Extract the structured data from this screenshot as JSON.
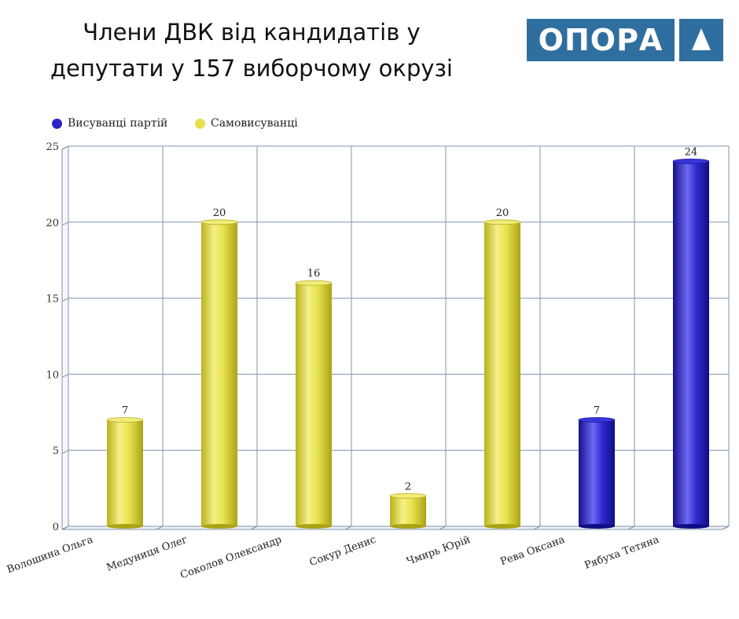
{
  "header": {
    "title_line1": "Члени ДВК  від кандидатів у",
    "title_line2": "депутати у 157 виборчому окрузі",
    "logo_text": "ОПОРА"
  },
  "colors": {
    "party": "#2a24c8",
    "self": "#e6e14a",
    "logo_blue": "#2f6f9f",
    "grid": "#7f95b0"
  },
  "chart_data": {
    "type": "bar",
    "title": "",
    "xlabel": "",
    "ylabel": "",
    "ylim": [
      0,
      25
    ],
    "yticks": [
      0,
      5,
      10,
      15,
      20,
      25
    ],
    "grid": true,
    "legend_position": "top-left",
    "series": [
      {
        "name": "Висуванці партій",
        "color": "#2a24c8"
      },
      {
        "name": "Самовисуванці",
        "color": "#e6e14a"
      }
    ],
    "categories": [
      "Волошина Ольга",
      "Медуниця Олег",
      "Соколов Олександр",
      "Сокур Денис",
      "Чмирь Юрій",
      "Рева Оксана",
      "Рябуха Тетяна"
    ],
    "values": [
      7,
      20,
      16,
      2,
      20,
      7,
      24
    ],
    "bar_series": [
      "Самовисуванці",
      "Самовисуванці",
      "Самовисуванці",
      "Самовисуванці",
      "Самовисуванці",
      "Висуванці партій",
      "Висуванці партій"
    ]
  }
}
